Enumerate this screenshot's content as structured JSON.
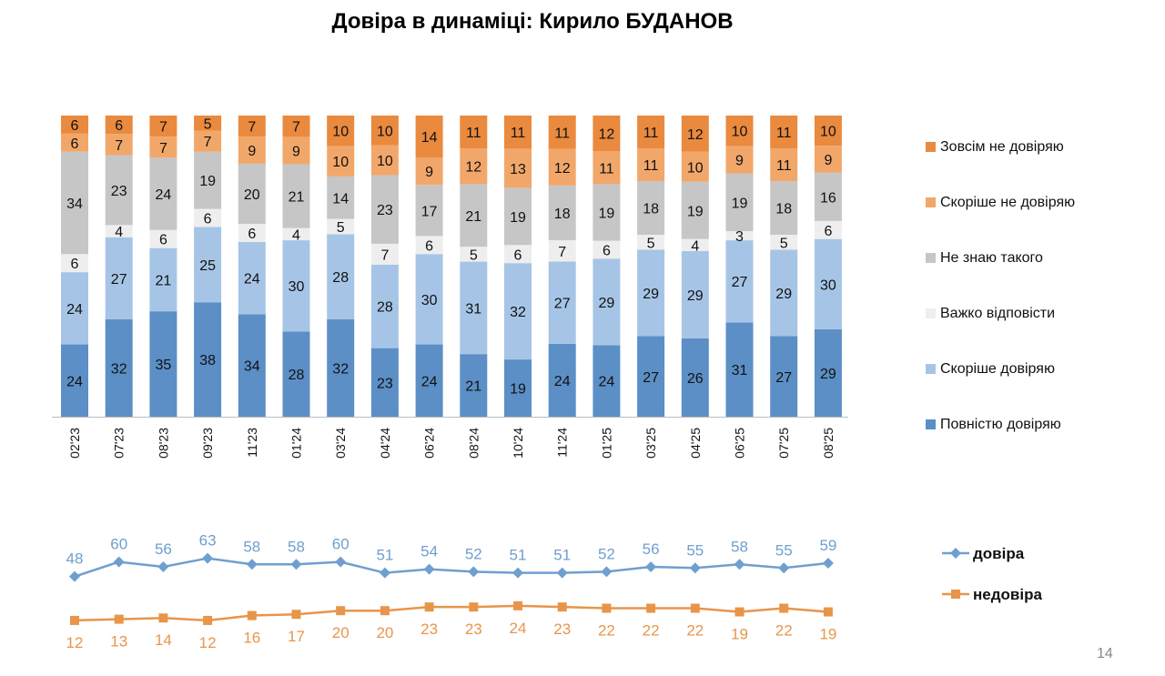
{
  "title": "Довіра в динаміці: Кирило БУДАНОВ",
  "page_number": "14",
  "colors": {
    "Повністю довіряю": "#5b8fc6",
    "Скоріше довіряю": "#a6c5e6",
    "Важко відповісти": "#eeeeee",
    "Не знаю такого": "#c6c6c6",
    "Скоріше не довіряю": "#f2a76a",
    "Зовсім не довіряю": "#e98a3f",
    "довіра": "#6f9fcf",
    "недовіра": "#e8954a"
  },
  "chart_data": [
    {
      "type": "bar",
      "stacked": true,
      "legend_position": "right",
      "categories": [
        "02'23",
        "07'23",
        "08'23",
        "09'23",
        "11'23",
        "01'24",
        "03'24",
        "04'24",
        "06'24",
        "08'24",
        "10'24",
        "11'24",
        "01'25",
        "03'25",
        "04'25",
        "06'25",
        "07'25",
        "08'25"
      ],
      "series": [
        {
          "name": "Повністю довіряю",
          "values": [
            24,
            32,
            35,
            38,
            34,
            28,
            32,
            23,
            24,
            21,
            19,
            24,
            24,
            27,
            26,
            31,
            27,
            29
          ]
        },
        {
          "name": "Скоріше довіряю",
          "values": [
            24,
            27,
            21,
            25,
            24,
            30,
            28,
            28,
            30,
            31,
            32,
            27,
            29,
            29,
            29,
            27,
            29,
            30
          ]
        },
        {
          "name": "Важко відповісти",
          "values": [
            6,
            4,
            6,
            6,
            6,
            4,
            5,
            7,
            6,
            5,
            6,
            7,
            6,
            5,
            4,
            3,
            5,
            6
          ]
        },
        {
          "name": "Не знаю такого",
          "values": [
            34,
            23,
            24,
            19,
            20,
            21,
            14,
            23,
            17,
            21,
            19,
            18,
            19,
            18,
            19,
            19,
            18,
            16
          ]
        },
        {
          "name": "Скоріше не довіряю",
          "values": [
            6,
            7,
            7,
            7,
            9,
            9,
            10,
            10,
            9,
            12,
            13,
            12,
            11,
            11,
            10,
            9,
            11,
            9
          ]
        },
        {
          "name": "Зовсім не довіряю",
          "values": [
            6,
            6,
            7,
            5,
            7,
            7,
            10,
            10,
            14,
            11,
            11,
            11,
            12,
            11,
            12,
            10,
            11,
            10
          ]
        }
      ]
    },
    {
      "type": "line",
      "legend_position": "right",
      "categories": [
        "02'23",
        "07'23",
        "08'23",
        "09'23",
        "11'23",
        "01'24",
        "03'24",
        "04'24",
        "06'24",
        "08'24",
        "10'24",
        "11'24",
        "01'25",
        "03'25",
        "04'25",
        "06'25",
        "07'25",
        "08'25"
      ],
      "series": [
        {
          "name": "довіра",
          "values": [
            48,
            60,
            56,
            63,
            58,
            58,
            60,
            51,
            54,
            52,
            51,
            51,
            52,
            56,
            55,
            58,
            55,
            59
          ]
        },
        {
          "name": "недовіра",
          "values": [
            12,
            13,
            14,
            12,
            16,
            17,
            20,
            20,
            23,
            23,
            24,
            23,
            22,
            22,
            22,
            19,
            22,
            19
          ]
        }
      ]
    }
  ]
}
